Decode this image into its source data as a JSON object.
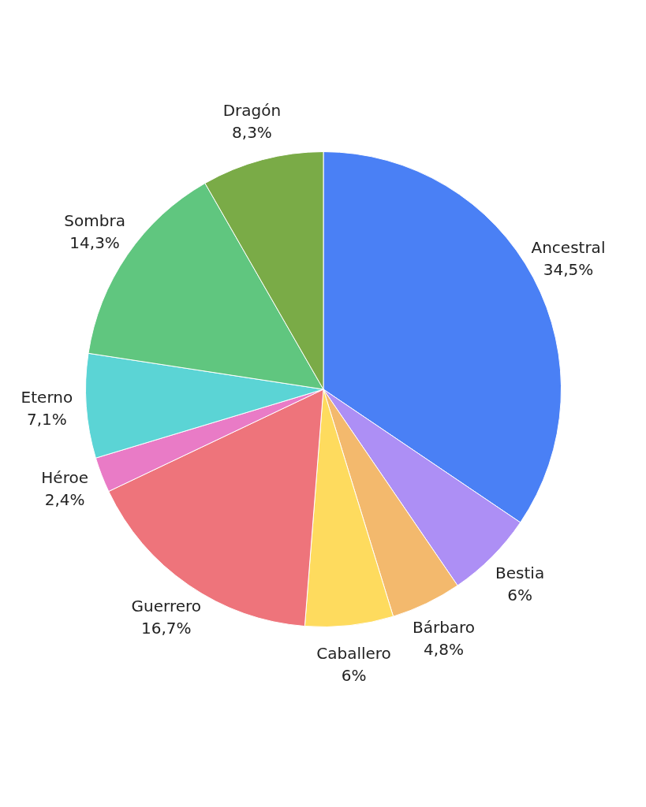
{
  "chart_data": {
    "type": "pie",
    "categories": [
      "Ancestral",
      "Bestia",
      "Bárbaro",
      "Caballero",
      "Guerrero",
      "Héroe",
      "Eterno",
      "Sombra",
      "Dragón"
    ],
    "values": [
      34.5,
      6,
      4.8,
      6,
      16.7,
      2.4,
      7.1,
      14.3,
      8.3
    ],
    "value_labels": [
      "34,5%",
      "6%",
      "4,8%",
      "6%",
      "16,7%",
      "2,4%",
      "7,1%",
      "14,3%",
      "8,3%"
    ],
    "colors": [
      "#4a80f5",
      "#ad8ff5",
      "#f3b96d",
      "#fedb5e",
      "#ee747b",
      "#e97bc6",
      "#5bd4d5",
      "#60c67f",
      "#7aab47"
    ]
  }
}
